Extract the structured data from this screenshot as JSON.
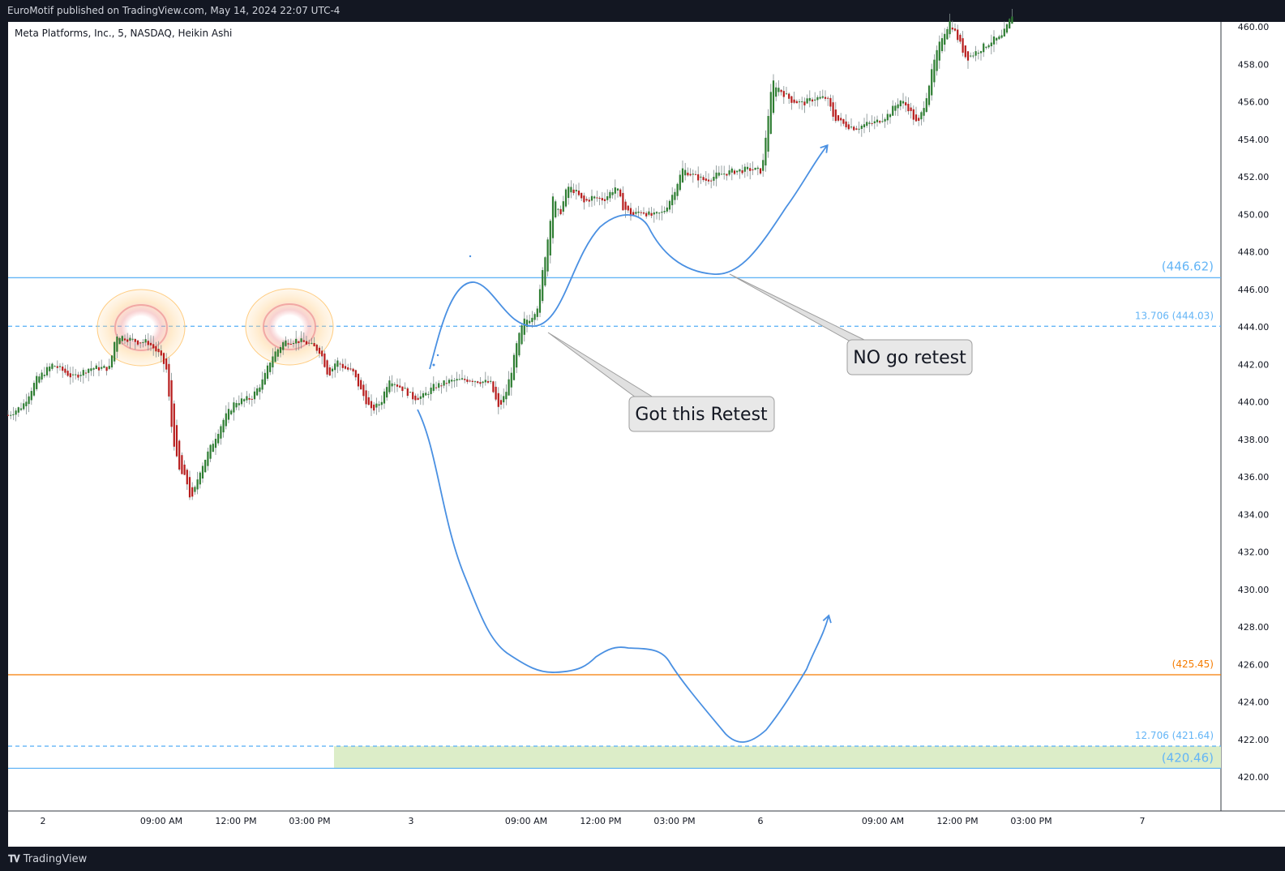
{
  "header": {
    "published_line": "EuroMotif published on TradingView.com, May 14, 2024 22:07 UTC-4"
  },
  "footer": {
    "brand": "TradingView",
    "logo_icon": "tradingview-logo-icon"
  },
  "chart_data": {
    "type": "candlestick",
    "candle_style": "Heikin Ashi",
    "title": "Meta Platforms, Inc., 5, NASDAQ, Heikin Ashi",
    "ylim": [
      418,
      461
    ],
    "y_ticks": [
      "460.00",
      "458.00",
      "456.00",
      "454.00",
      "452.00",
      "450.00",
      "448.00",
      "446.00",
      "444.00",
      "442.00",
      "440.00",
      "438.00",
      "436.00",
      "434.00",
      "432.00",
      "430.00",
      "428.00",
      "426.00",
      "424.00",
      "422.00",
      "420.00"
    ],
    "x_ticks": [
      "2",
      "09:00 AM",
      "12:00 PM",
      "03:00 PM",
      "3",
      "09:00 AM",
      "12:00 PM",
      "03:00 PM",
      "6",
      "09:00 AM",
      "12:00 PM",
      "03:00 PM",
      "7"
    ],
    "colors": {
      "up": "#2e7d32",
      "down": "#b71c1c",
      "wick": "#7f8c8d"
    },
    "price_path": [
      [
        0,
        439.3
      ],
      [
        18,
        439.8
      ],
      [
        35,
        441.2
      ],
      [
        55,
        442.0
      ],
      [
        80,
        441.3
      ],
      [
        100,
        441.8
      ],
      [
        125,
        441.8
      ],
      [
        133,
        443.6
      ],
      [
        145,
        443.4
      ],
      [
        160,
        443.2
      ],
      [
        172,
        443.2
      ],
      [
        185,
        442.6
      ],
      [
        195,
        441.8
      ],
      [
        202,
        438.5
      ],
      [
        210,
        436.4
      ],
      [
        220,
        435.8
      ],
      [
        226,
        434.6
      ],
      [
        236,
        436.3
      ],
      [
        250,
        437.6
      ],
      [
        265,
        439.0
      ],
      [
        280,
        440.0
      ],
      [
        300,
        440.2
      ],
      [
        315,
        441.2
      ],
      [
        325,
        442.4
      ],
      [
        340,
        443.2
      ],
      [
        355,
        443.3
      ],
      [
        370,
        443.1
      ],
      [
        385,
        442.7
      ],
      [
        395,
        441.4
      ],
      [
        405,
        442.2
      ],
      [
        415,
        441.8
      ],
      [
        425,
        441.6
      ],
      [
        435,
        440.6
      ],
      [
        448,
        439.5
      ],
      [
        460,
        440.0
      ],
      [
        470,
        441.3
      ],
      [
        480,
        440.9
      ],
      [
        490,
        440.6
      ],
      [
        500,
        440.2
      ],
      [
        512,
        440.3
      ],
      [
        525,
        440.8
      ],
      [
        545,
        441.1
      ],
      [
        570,
        441.2
      ],
      [
        595,
        441.0
      ],
      [
        605,
        439.6
      ],
      [
        614,
        440.5
      ],
      [
        622,
        441.9
      ],
      [
        628,
        443.2
      ],
      [
        636,
        444.3
      ],
      [
        645,
        444.5
      ],
      [
        654,
        445.2
      ],
      [
        660,
        447.2
      ],
      [
        666,
        448.8
      ],
      [
        672,
        451.0
      ],
      [
        680,
        449.9
      ],
      [
        690,
        451.5
      ],
      [
        700,
        451.2
      ],
      [
        710,
        450.6
      ],
      [
        720,
        450.9
      ],
      [
        735,
        450.8
      ],
      [
        750,
        451.5
      ],
      [
        758,
        450.4
      ],
      [
        770,
        449.9
      ],
      [
        780,
        450.2
      ],
      [
        795,
        449.9
      ],
      [
        808,
        450.1
      ],
      [
        820,
        451.1
      ],
      [
        832,
        452.4
      ],
      [
        848,
        452.0
      ],
      [
        860,
        451.8
      ],
      [
        875,
        452.1
      ],
      [
        895,
        452.3
      ],
      [
        915,
        452.4
      ],
      [
        930,
        452.3
      ],
      [
        936,
        454.8
      ],
      [
        943,
        457.1
      ],
      [
        955,
        456.5
      ],
      [
        965,
        456.1
      ],
      [
        980,
        455.9
      ],
      [
        995,
        456.2
      ],
      [
        1010,
        456.2
      ],
      [
        1018,
        455.2
      ],
      [
        1030,
        454.8
      ],
      [
        1045,
        454.6
      ],
      [
        1058,
        454.8
      ],
      [
        1070,
        454.9
      ],
      [
        1085,
        455.3
      ],
      [
        1100,
        456.1
      ],
      [
        1110,
        455.7
      ],
      [
        1122,
        454.7
      ],
      [
        1132,
        456.2
      ],
      [
        1142,
        458.1
      ],
      [
        1152,
        459.5
      ],
      [
        1162,
        460.3
      ],
      [
        1170,
        459.5
      ],
      [
        1182,
        458.3
      ],
      [
        1192,
        458.6
      ],
      [
        1205,
        459.0
      ],
      [
        1215,
        459.3
      ],
      [
        1225,
        459.4
      ],
      [
        1233,
        460.1
      ],
      [
        1240,
        460.8
      ]
    ],
    "price_lines": [
      {
        "price": 446.62,
        "label": "(446.62)",
        "color": "#64b5f6",
        "style": "solid"
      },
      {
        "price": 444.03,
        "label": "13.706 (444.03)",
        "color": "#64b5f6",
        "style": "dashed"
      },
      {
        "price": 425.45,
        "label": "(425.45)",
        "color": "#f57c00",
        "style": "solid"
      },
      {
        "price": 421.64,
        "label": "12.706 (421.64)",
        "color": "#64b5f6",
        "style": "dashed"
      },
      {
        "price": 420.46,
        "label": "(420.46)",
        "color": "#64b5f6",
        "style": "solid"
      }
    ],
    "zone": {
      "price_low": 420.46,
      "price_high": 421.64,
      "color": "#dcedc8"
    },
    "callouts": [
      {
        "text": "Got this Retest"
      },
      {
        "text": "NO go retest"
      }
    ]
  }
}
